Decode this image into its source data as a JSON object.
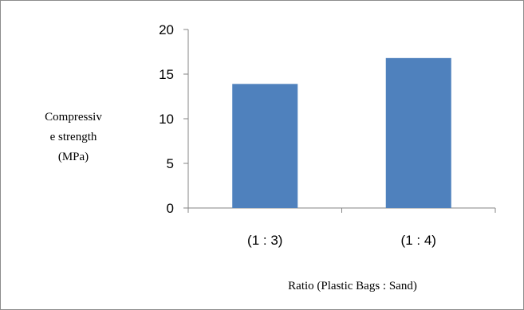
{
  "chart_data": {
    "type": "bar",
    "categories": [
      "(1 : 3)",
      "(1 : 4)"
    ],
    "series": [
      {
        "values": [
          13.9,
          16.8
        ]
      }
    ],
    "ylim": [
      0,
      20
    ],
    "yticks": [
      0,
      5,
      10,
      15,
      20
    ],
    "xlabel": "Ratio (Plastic Bags : Sand)",
    "ylabel_lines": [
      "Compressiv",
      "e strength",
      "(MPa)"
    ],
    "colors": {
      "bar": "#4f81bd",
      "axis": "#868686"
    },
    "grid": false,
    "legend": "none"
  }
}
